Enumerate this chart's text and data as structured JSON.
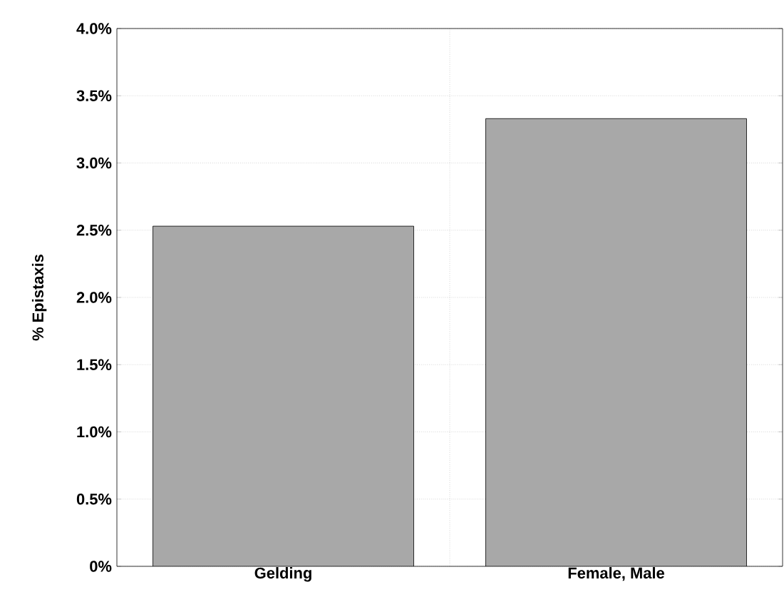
{
  "chart_data": {
    "type": "bar",
    "ylabel": "% Epistaxis",
    "categories": [
      "Gelding",
      "Female, Male"
    ],
    "values": [
      2.53,
      3.33
    ],
    "color": "#a8a8a8",
    "ylim": [
      0,
      4.0
    ],
    "yticks": [
      {
        "value": 0,
        "label": "0%"
      },
      {
        "value": 0.5,
        "label": "0.5%"
      },
      {
        "value": 1.0,
        "label": "1.0%"
      },
      {
        "value": 1.5,
        "label": "1.5%"
      },
      {
        "value": 2.0,
        "label": "2.0%"
      },
      {
        "value": 2.5,
        "label": "2.5%"
      },
      {
        "value": 3.0,
        "label": "3.0%"
      },
      {
        "value": 3.5,
        "label": "3.5%"
      },
      {
        "value": 4.0,
        "label": "4.0%"
      }
    ],
    "grid": true
  }
}
